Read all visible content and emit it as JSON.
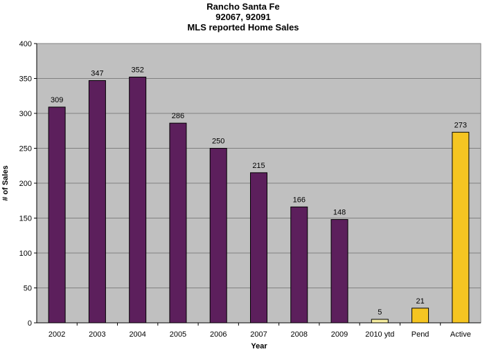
{
  "chart_data": {
    "type": "bar",
    "title_lines": [
      "Rancho Santa Fe",
      "92067, 92091",
      "MLS reported Home Sales"
    ],
    "xlabel": "Year",
    "ylabel": "# of Sales",
    "ylim": [
      0,
      400
    ],
    "yticks": [
      0,
      50,
      100,
      150,
      200,
      250,
      300,
      350,
      400
    ],
    "grid": true,
    "legend": "none",
    "plot_background": "#c0c0c0",
    "categories": [
      "2002",
      "2003",
      "2004",
      "2005",
      "2006",
      "2007",
      "2008",
      "2009",
      "2010 ytd",
      "Pend",
      "Active"
    ],
    "values": [
      309,
      347,
      352,
      286,
      250,
      215,
      166,
      148,
      5,
      21,
      273
    ],
    "labels": [
      "309",
      "347",
      "352",
      "286",
      "250",
      "215",
      "166",
      "148",
      "5",
      "21",
      "273"
    ],
    "colors": [
      "#5c1f5c",
      "#5c1f5c",
      "#5c1f5c",
      "#5c1f5c",
      "#5c1f5c",
      "#5c1f5c",
      "#5c1f5c",
      "#5c1f5c",
      "#f5eca0",
      "#f5c522",
      "#f5c522"
    ]
  }
}
